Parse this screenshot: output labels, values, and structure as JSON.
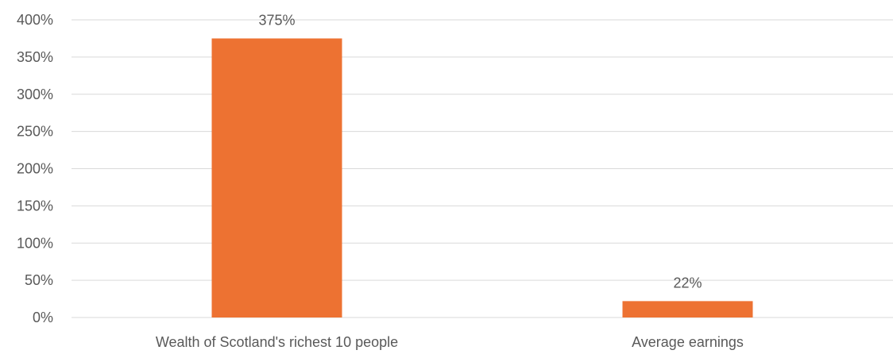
{
  "chart_data": {
    "type": "bar",
    "title": "",
    "xlabel": "",
    "ylabel": "",
    "categories": [
      "Wealth of Scotland's richest 10 people",
      "Average earnings"
    ],
    "values": [
      375,
      22
    ],
    "data_labels": [
      "375%",
      "22%"
    ],
    "ylim": [
      0,
      400
    ],
    "y_ticks": [
      0,
      50,
      100,
      150,
      200,
      250,
      300,
      350,
      400
    ],
    "y_tick_labels": [
      "0%",
      "50%",
      "100%",
      "150%",
      "200%",
      "250%",
      "300%",
      "350%",
      "400%"
    ],
    "grid": true,
    "legend": "none",
    "bar_color": "#ED7232"
  }
}
